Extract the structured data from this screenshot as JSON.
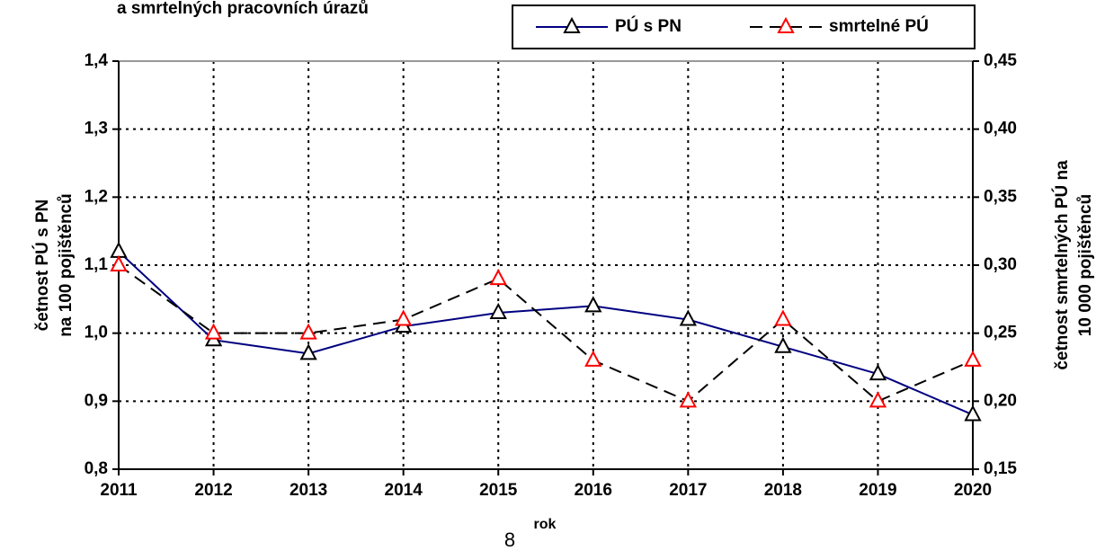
{
  "chart_data": {
    "type": "line",
    "title": "a smrtelných pracovních úrazů",
    "xlabel": "rok",
    "ylabel": [
      "četnost PÚ s PN",
      "na 100 pojištěnců"
    ],
    "y2label": [
      "četnost smrtelných PÚ na",
      "10 000 pojištěnců"
    ],
    "categories": [
      "2011",
      "2012",
      "2013",
      "2014",
      "2015",
      "2016",
      "2017",
      "2018",
      "2019",
      "2020"
    ],
    "series": [
      {
        "name": "PÚ s PN",
        "color": "#000080",
        "marker_color": "#000000",
        "dash": false,
        "values": [
          1.12,
          0.99,
          0.97,
          1.01,
          1.03,
          1.04,
          1.02,
          0.98,
          0.94,
          0.88
        ]
      },
      {
        "name": "smrtelné PÚ",
        "color": "#000000",
        "marker_color": "#ff0000",
        "dash": true,
        "axis": "y2",
        "values": [
          0.3,
          0.25,
          0.25,
          0.26,
          0.29,
          0.23,
          0.2,
          0.26,
          0.2,
          0.23
        ]
      }
    ],
    "ylim": [
      0.8,
      1.4
    ],
    "yticks": [
      {
        "value": 0.8,
        "label": "0,8"
      },
      {
        "value": 0.9,
        "label": "0,9"
      },
      {
        "value": 1.0,
        "label": "1,0"
      },
      {
        "value": 1.1,
        "label": "1,1"
      },
      {
        "value": 1.2,
        "label": "1,2"
      },
      {
        "value": 1.3,
        "label": "1,3"
      },
      {
        "value": 1.4,
        "label": "1,4"
      }
    ],
    "y2lim": [
      0.15,
      0.45
    ],
    "y2ticks": [
      {
        "value": 0.15,
        "label": "0,15"
      },
      {
        "value": 0.2,
        "label": "0,20"
      },
      {
        "value": 0.25,
        "label": "0,25"
      },
      {
        "value": 0.3,
        "label": "0,30"
      },
      {
        "value": 0.35,
        "label": "0,35"
      },
      {
        "value": 0.4,
        "label": "0,40"
      },
      {
        "value": 0.45,
        "label": "0,45"
      }
    ],
    "grid": true
  },
  "footer": {
    "page_number": "8"
  }
}
